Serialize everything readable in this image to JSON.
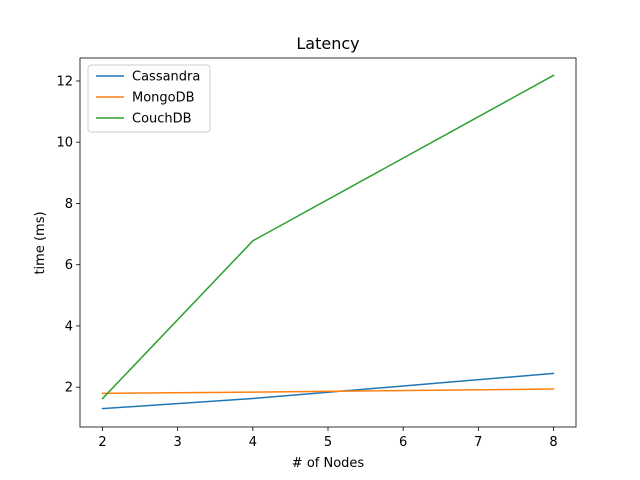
{
  "chart_data": {
    "type": "line",
    "title": "Latency",
    "xlabel": "# of Nodes",
    "ylabel": "time (ms)",
    "x": [
      2,
      4,
      8
    ],
    "xlim": [
      1.7,
      8.3
    ],
    "ylim": [
      0.7,
      12.75
    ],
    "xticks": [
      2,
      3,
      4,
      5,
      6,
      7,
      8
    ],
    "yticks": [
      2,
      4,
      6,
      8,
      10,
      12
    ],
    "grid": false,
    "legend_position": "top-left",
    "series": [
      {
        "name": "Cassandra",
        "color": "#1f77b4",
        "values": [
          1.3,
          1.63,
          2.45
        ]
      },
      {
        "name": "MongoDB",
        "color": "#ff7f0e",
        "values": [
          1.8,
          1.84,
          1.94
        ]
      },
      {
        "name": "CouchDB",
        "color": "#2ca02c",
        "values": [
          1.63,
          6.78,
          12.18
        ]
      }
    ]
  }
}
